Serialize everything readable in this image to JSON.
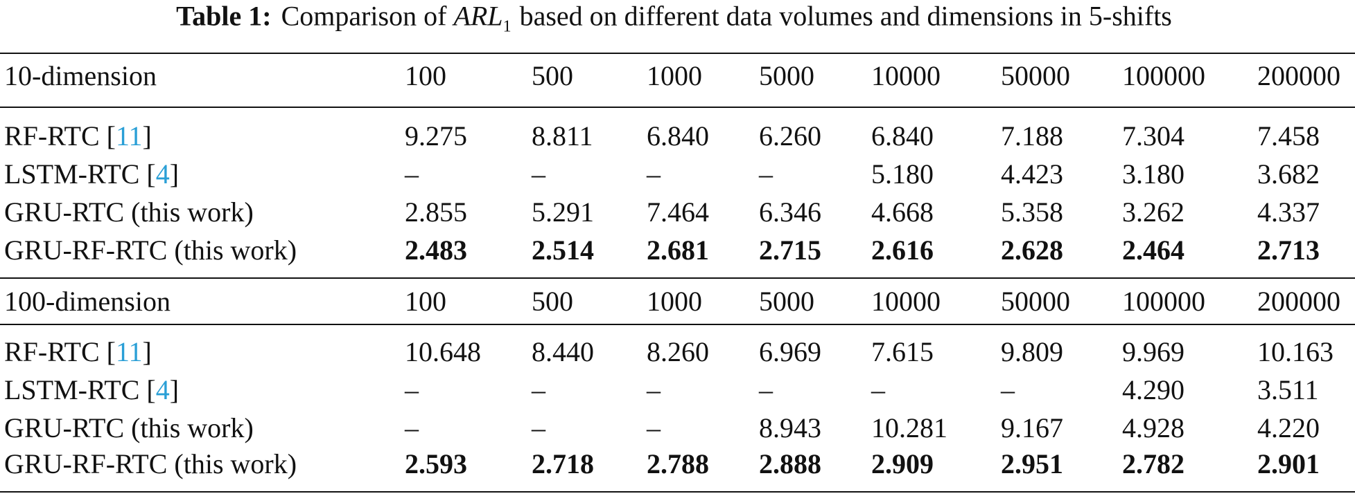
{
  "caption": {
    "label": "Table 1:",
    "text_before": "Comparison of",
    "symbol": "ARL",
    "subscript": "1",
    "text_after": "based on different data volumes and dimensions in 5-shifts"
  },
  "sections": [
    {
      "header": [
        "10-dimension",
        "100",
        "500",
        "1000",
        "5000",
        "10000",
        "50000",
        "100000",
        "200000"
      ],
      "rows": [
        {
          "label": [
            "RF-RTC [",
            "11",
            "]"
          ],
          "bold": false,
          "cells": [
            "9.275",
            "8.811",
            "6.840",
            "6.260",
            "6.840",
            "7.188",
            "7.304",
            "7.458"
          ]
        },
        {
          "label": [
            "LSTM-RTC [",
            "4",
            "]"
          ],
          "bold": false,
          "cells": [
            "–",
            "–",
            "–",
            "–",
            "5.180",
            "4.423",
            "3.180",
            "3.682"
          ]
        },
        {
          "label": [
            "GRU-RTC (this work)"
          ],
          "bold": false,
          "cells": [
            "2.855",
            "5.291",
            "7.464",
            "6.346",
            "4.668",
            "5.358",
            "3.262",
            "4.337"
          ]
        },
        {
          "label": [
            "GRU-RF-RTC (this work)"
          ],
          "bold": true,
          "cells": [
            "2.483",
            "2.514",
            "2.681",
            "2.715",
            "2.616",
            "2.628",
            "2.464",
            "2.713"
          ]
        }
      ]
    },
    {
      "header": [
        "100-dimension",
        "100",
        "500",
        "1000",
        "5000",
        "10000",
        "50000",
        "100000",
        "200000"
      ],
      "rows": [
        {
          "label": [
            "RF-RTC [",
            "11",
            "]"
          ],
          "bold": false,
          "cells": [
            "10.648",
            "8.440",
            "8.260",
            "6.969",
            "7.615",
            "9.809",
            "9.969",
            "10.163"
          ]
        },
        {
          "label": [
            "LSTM-RTC [",
            "4",
            "]"
          ],
          "bold": false,
          "cells": [
            "–",
            "–",
            "–",
            "–",
            "–",
            "–",
            "4.290",
            "3.511"
          ]
        },
        {
          "label": [
            "GRU-RTC (this work)"
          ],
          "bold": false,
          "cells": [
            "–",
            "–",
            "–",
            "8.943",
            "10.281",
            "9.167",
            "4.928",
            "4.220"
          ]
        },
        {
          "label": [
            "GRU-RF-RTC (this work)"
          ],
          "bold": true,
          "cells": [
            "2.593",
            "2.718",
            "2.788",
            "2.888",
            "2.909",
            "2.951",
            "2.782",
            "2.901"
          ]
        }
      ]
    }
  ]
}
